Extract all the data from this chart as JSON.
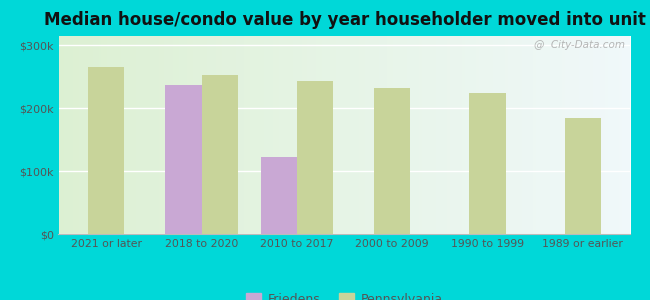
{
  "title": "Median house/condo value by year householder moved into unit",
  "categories": [
    "2021 or later",
    "2018 to 2020",
    "2010 to 2017",
    "2000 to 2009",
    "1990 to 1999",
    "1989 or earlier"
  ],
  "friedens_values": [
    null,
    237000,
    122000,
    null,
    null,
    null
  ],
  "pa_values": [
    265000,
    253000,
    243000,
    233000,
    225000,
    185000
  ],
  "friedens_color": "#c9a8d4",
  "pa_color": "#c8d49a",
  "background_outer": "#00d8d8",
  "ylabel_ticks": [
    0,
    100000,
    200000,
    300000
  ],
  "ylabel_labels": [
    "$0",
    "$100k",
    "$200k",
    "$300k"
  ],
  "ylim": [
    0,
    315000
  ],
  "bar_width": 0.38,
  "legend_friedens": "Friedens",
  "legend_pa": "Pennsylvania",
  "watermark": "@  City-Data.com"
}
